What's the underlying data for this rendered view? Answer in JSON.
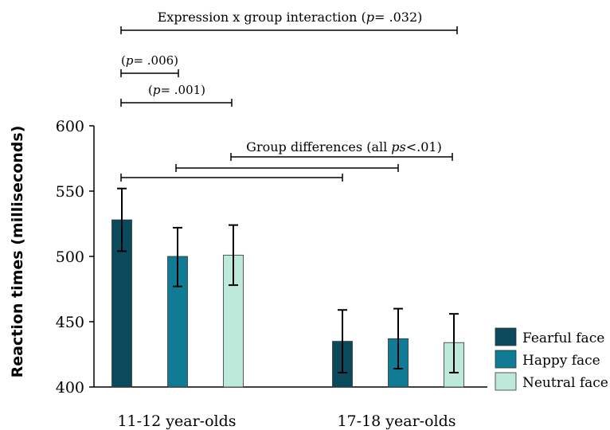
{
  "chart_data": {
    "type": "bar",
    "ylabel": "Reaction times (milliseconds)",
    "ylim": [
      400,
      600
    ],
    "yticks": [
      "400",
      "450",
      "500",
      "550",
      "600"
    ],
    "categories": [
      "11-12 year-olds",
      "17-18 year-olds"
    ],
    "series": [
      {
        "name": "Fearful face",
        "color": "#0b4a5c",
        "values": [
          528,
          435
        ],
        "err_low": [
          504,
          411
        ],
        "err_high": [
          552,
          459
        ]
      },
      {
        "name": "Happy face",
        "color": "#0f7b94",
        "values": [
          500,
          437
        ],
        "err_low": [
          477,
          414
        ],
        "err_high": [
          522,
          460
        ]
      },
      {
        "name": "Neutral face",
        "color": "#bce9d9",
        "values": [
          501,
          434
        ],
        "err_low": [
          478,
          411
        ],
        "err_high": [
          524,
          456
        ]
      }
    ],
    "legend_position": "bottom-right",
    "annotations": {
      "interaction": "Expression x group interaction (p= .032)",
      "p1": "(p= .006)",
      "p2": "(p= .001)",
      "group_diff": "Group differences (all ps<.01)"
    }
  }
}
